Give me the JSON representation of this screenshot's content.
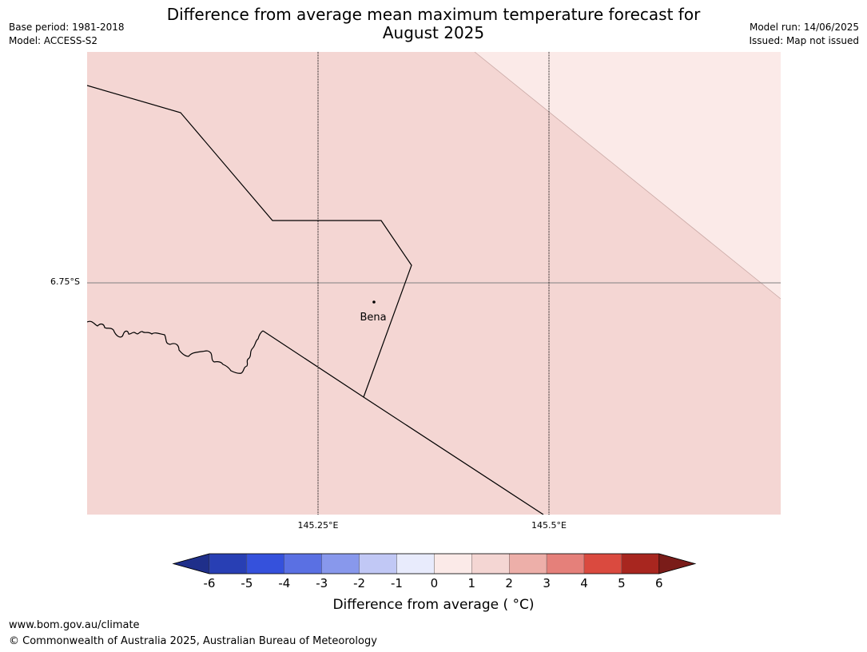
{
  "header": {
    "title_line1": "Difference from average mean maximum temperature forecast for",
    "title_line2": "August 2025",
    "base_period": "Base period: 1981-2018",
    "model": "Model: ACCESS-S2",
    "model_run": "Model run: 14/06/2025",
    "issued": "Issued: Map not issued"
  },
  "map": {
    "lat_label": "6.75°S",
    "lon_labels": [
      "145.25°E",
      "145.5°E"
    ],
    "place": "Bena",
    "colors": {
      "band_0_1": "#fbeae8",
      "band_1_2": "#f4d6d3",
      "border": "#000000",
      "gridline": "#000000",
      "lat_gridline": "#808080"
    }
  },
  "colorbar": {
    "label": "Difference from average ( °C)",
    "ticks": [
      "-6",
      "-5",
      "-4",
      "-3",
      "-2",
      "-1",
      "0",
      "1",
      "2",
      "3",
      "4",
      "5",
      "6"
    ],
    "colors": [
      "#1f2f8a",
      "#283fb4",
      "#3551dc",
      "#5a70e3",
      "#8898ec",
      "#c1c8f5",
      "#e8ebfc",
      "#fbeae8",
      "#f4d6d3",
      "#edafa9",
      "#e5807a",
      "#da4a3f",
      "#a8261f",
      "#7a1c19"
    ]
  },
  "footer": {
    "site": "www.bom.gov.au/climate",
    "copyright": "© Commonwealth of Australia 2025, Australian Bureau of Meteorology"
  }
}
